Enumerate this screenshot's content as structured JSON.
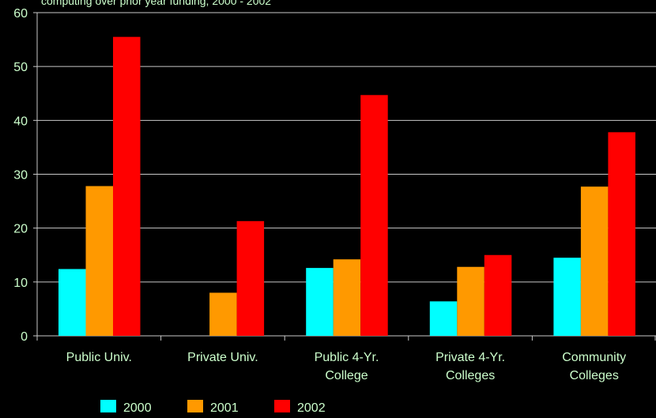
{
  "chart_data": {
    "type": "bar",
    "title": "computing over prior year funding, 2000 - 2002",
    "categories": [
      [
        "Public Univ."
      ],
      [
        "Private Univ."
      ],
      [
        "Public 4-Yr.",
        "College"
      ],
      [
        "Private 4-Yr.",
        "Colleges"
      ],
      [
        "Community",
        "Colleges"
      ]
    ],
    "series": [
      {
        "name": "2000",
        "color": "#00ffff",
        "values": [
          12.4,
          null,
          12.6,
          6.4,
          14.5
        ]
      },
      {
        "name": "2001",
        "color": "#ff9900",
        "values": [
          27.8,
          8.0,
          14.2,
          12.8,
          27.7
        ]
      },
      {
        "name": "2002",
        "color": "#ff0000",
        "values": [
          55.5,
          21.3,
          44.7,
          15.0,
          37.8
        ]
      }
    ],
    "ylim": [
      0,
      60
    ],
    "yticks": [
      0,
      10,
      20,
      30,
      40,
      50,
      60
    ],
    "grid": true,
    "legend_position": "bottom-left",
    "background": "#000000",
    "text_color": "#ccffcc"
  }
}
